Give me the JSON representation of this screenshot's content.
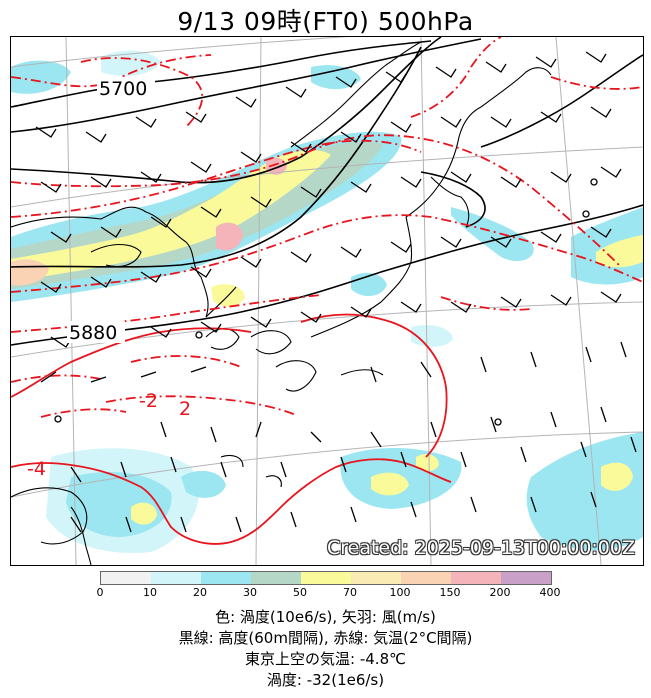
{
  "title": "9/13  09時(FT0)     500hPa",
  "map": {
    "created_stamp": "Created: 2025-09-13T00:00:00Z",
    "contour_labels": [
      "5700",
      "5880"
    ],
    "temp_labels": [
      "-2",
      "2",
      "-4"
    ],
    "colors": {
      "height_contour": "#000000",
      "temp_contour": "#e8141e",
      "coast": "#000000",
      "grid": "#b4b4b4"
    }
  },
  "colorbar": {
    "ticks": [
      "0",
      "10",
      "20",
      "30",
      "50",
      "70",
      "100",
      "150",
      "200",
      "400"
    ],
    "colors": [
      "#f2f2f2",
      "#d2f5fa",
      "#9be6f0",
      "#b4d7c8",
      "#fafa9b",
      "#faebb4",
      "#fad2b4",
      "#f5b4b9",
      "#c8a0c8"
    ]
  },
  "captions": {
    "line1": "色: 渦度(10e6/s),  矢羽: 風(m/s)",
    "line2": "黒線: 高度(60m間隔),  赤線: 気温(2°C間隔)",
    "line3": "東京上空の気温: -4.8℃",
    "line4": "渦度: -32(1e6/s)"
  }
}
